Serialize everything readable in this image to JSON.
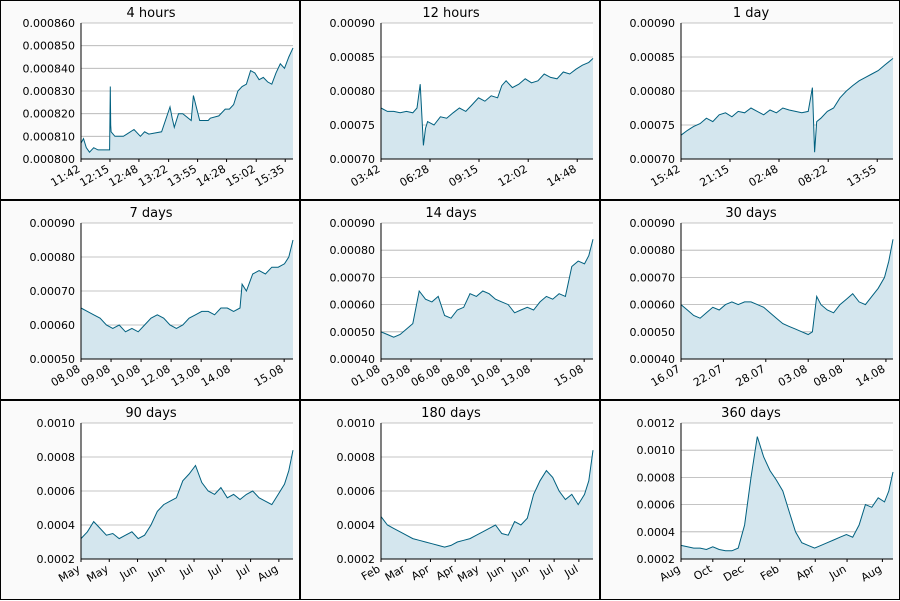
{
  "line_color": "#00607f",
  "fill_color": "#d4e6ee",
  "grid_color": "#b0b0b0",
  "chart_data": [
    {
      "type": "area",
      "title": "4 hours",
      "ylim": [
        0.0008,
        0.00086
      ],
      "y_ticks": [
        "0.000800",
        "0.000810",
        "0.000820",
        "0.000830",
        "0.000840",
        "0.000850",
        "0.000860"
      ],
      "x_labels": [
        "11:42",
        "12:15",
        "12:48",
        "13:22",
        "13:55",
        "14:28",
        "15:02",
        "15:35"
      ],
      "x_label_pos": [
        0,
        0.1366,
        0.2732,
        0.4133,
        0.55,
        0.6866,
        0.8266,
        0.9633
      ],
      "x": [
        0,
        0.012,
        0.025,
        0.04,
        0.06,
        0.08,
        0.1,
        0.12,
        0.135,
        0.138,
        0.14,
        0.142,
        0.16,
        0.2,
        0.25,
        0.28,
        0.3,
        0.32,
        0.38,
        0.42,
        0.43,
        0.44,
        0.46,
        0.48,
        0.52,
        0.53,
        0.56,
        0.6,
        0.61,
        0.65,
        0.68,
        0.7,
        0.72,
        0.74,
        0.76,
        0.78,
        0.8,
        0.82,
        0.84,
        0.86,
        0.88,
        0.9,
        0.92,
        0.94,
        0.96,
        0.98,
        1.0
      ],
      "y": [
        0.000807,
        0.000809,
        0.000805,
        0.000803,
        0.000805,
        0.000804,
        0.000804,
        0.000804,
        0.000804,
        0.000832,
        0.000815,
        0.000812,
        0.00081,
        0.00081,
        0.000813,
        0.00081,
        0.000812,
        0.000811,
        0.000812,
        0.000823,
        0.000818,
        0.000814,
        0.00082,
        0.00082,
        0.000817,
        0.000828,
        0.000817,
        0.000817,
        0.000818,
        0.000819,
        0.000822,
        0.000822,
        0.000824,
        0.00083,
        0.000832,
        0.000833,
        0.000839,
        0.000838,
        0.000835,
        0.000836,
        0.000834,
        0.000833,
        0.000838,
        0.000842,
        0.00084,
        0.000845,
        0.000849
      ]
    },
    {
      "type": "area",
      "title": "12 hours",
      "ylim": [
        0.0007,
        0.0009
      ],
      "y_ticks": [
        "0.00070",
        "0.00075",
        "0.00080",
        "0.00085",
        "0.00090"
      ],
      "x_labels": [
        "03:42",
        "06:28",
        "09:15",
        "12:02",
        "14:48"
      ],
      "x_label_pos": [
        0,
        0.2311,
        0.4622,
        0.6944,
        0.9256
      ],
      "x": [
        0,
        0.03,
        0.06,
        0.09,
        0.12,
        0.15,
        0.17,
        0.185,
        0.19,
        0.2,
        0.21,
        0.22,
        0.25,
        0.28,
        0.31,
        0.34,
        0.37,
        0.4,
        0.43,
        0.46,
        0.49,
        0.52,
        0.55,
        0.57,
        0.59,
        0.62,
        0.65,
        0.68,
        0.71,
        0.74,
        0.77,
        0.8,
        0.83,
        0.86,
        0.89,
        0.92,
        0.95,
        0.98,
        1.0
      ],
      "y": [
        0.000775,
        0.00077,
        0.00077,
        0.000768,
        0.00077,
        0.000768,
        0.000775,
        0.00081,
        0.00078,
        0.00072,
        0.000745,
        0.000755,
        0.00075,
        0.000762,
        0.00076,
        0.000768,
        0.000775,
        0.00077,
        0.00078,
        0.00079,
        0.000785,
        0.000793,
        0.00079,
        0.000808,
        0.000815,
        0.000805,
        0.00081,
        0.000818,
        0.000812,
        0.000815,
        0.000825,
        0.00082,
        0.000818,
        0.000828,
        0.000825,
        0.000832,
        0.000838,
        0.000842,
        0.000848
      ]
    },
    {
      "type": "area",
      "title": "1 day",
      "ylim": [
        0.0007,
        0.0009
      ],
      "y_ticks": [
        "0.00070",
        "0.00075",
        "0.00080",
        "0.00085",
        "0.00090"
      ],
      "x_labels": [
        "15:42",
        "21:15",
        "02:48",
        "08:22",
        "13:55"
      ],
      "x_label_pos": [
        0,
        0.2311,
        0.4622,
        0.6944,
        0.9256
      ],
      "x": [
        0,
        0.03,
        0.06,
        0.09,
        0.12,
        0.15,
        0.18,
        0.21,
        0.24,
        0.27,
        0.3,
        0.33,
        0.36,
        0.39,
        0.42,
        0.45,
        0.48,
        0.51,
        0.54,
        0.57,
        0.6,
        0.62,
        0.63,
        0.64,
        0.66,
        0.69,
        0.72,
        0.75,
        0.78,
        0.81,
        0.84,
        0.87,
        0.9,
        0.93,
        0.96,
        1.0
      ],
      "y": [
        0.000735,
        0.000742,
        0.000748,
        0.000752,
        0.00076,
        0.000755,
        0.000765,
        0.000768,
        0.000762,
        0.00077,
        0.000768,
        0.000775,
        0.00077,
        0.000765,
        0.000772,
        0.000768,
        0.000775,
        0.000772,
        0.00077,
        0.000768,
        0.00077,
        0.000805,
        0.00071,
        0.000755,
        0.00076,
        0.00077,
        0.000775,
        0.00079,
        0.0008,
        0.000808,
        0.000815,
        0.00082,
        0.000825,
        0.00083,
        0.000838,
        0.000848
      ]
    },
    {
      "type": "area",
      "title": "7 days",
      "ylim": [
        0.0005,
        0.0009
      ],
      "y_ticks": [
        "0.00050",
        "0.00060",
        "0.00070",
        "0.00080",
        "0.00090"
      ],
      "x_labels": [
        "08.08",
        "09.08",
        "10.08",
        "12.08",
        "13.08",
        "14.08",
        "15.08"
      ],
      "x_label_pos": [
        0,
        0.1417,
        0.2833,
        0.425,
        0.5667,
        0.7083,
        0.9583
      ],
      "x": [
        0,
        0.03,
        0.06,
        0.09,
        0.12,
        0.15,
        0.18,
        0.21,
        0.24,
        0.27,
        0.3,
        0.33,
        0.36,
        0.39,
        0.42,
        0.45,
        0.48,
        0.51,
        0.54,
        0.57,
        0.6,
        0.63,
        0.66,
        0.69,
        0.72,
        0.75,
        0.76,
        0.78,
        0.81,
        0.84,
        0.87,
        0.9,
        0.93,
        0.96,
        0.98,
        1.0
      ],
      "y": [
        0.00065,
        0.00064,
        0.00063,
        0.00062,
        0.0006,
        0.00059,
        0.0006,
        0.00058,
        0.00059,
        0.00058,
        0.0006,
        0.00062,
        0.00063,
        0.00062,
        0.0006,
        0.00059,
        0.0006,
        0.00062,
        0.00063,
        0.00064,
        0.00064,
        0.00063,
        0.00065,
        0.00065,
        0.00064,
        0.00065,
        0.00072,
        0.0007,
        0.00075,
        0.00076,
        0.00075,
        0.00077,
        0.00077,
        0.00078,
        0.0008,
        0.00085
      ]
    },
    {
      "type": "area",
      "title": "14 days",
      "ylim": [
        0.0004,
        0.0009
      ],
      "y_ticks": [
        "0.00040",
        "0.00050",
        "0.00060",
        "0.00070",
        "0.00080",
        "0.00090"
      ],
      "x_labels": [
        "01.08",
        "03.08",
        "06.08",
        "08.08",
        "10.08",
        "13.08",
        "15.08"
      ],
      "x_label_pos": [
        0,
        0.1417,
        0.2833,
        0.425,
        0.5667,
        0.7083,
        0.9583
      ],
      "x": [
        0,
        0.03,
        0.06,
        0.09,
        0.12,
        0.15,
        0.18,
        0.21,
        0.24,
        0.27,
        0.3,
        0.33,
        0.36,
        0.39,
        0.42,
        0.45,
        0.48,
        0.51,
        0.54,
        0.57,
        0.6,
        0.63,
        0.66,
        0.69,
        0.72,
        0.75,
        0.78,
        0.81,
        0.84,
        0.87,
        0.9,
        0.93,
        0.96,
        0.98,
        1.0
      ],
      "y": [
        0.0005,
        0.00049,
        0.00048,
        0.00049,
        0.00051,
        0.00053,
        0.00065,
        0.00062,
        0.00061,
        0.00063,
        0.00056,
        0.00055,
        0.00058,
        0.00059,
        0.00064,
        0.00063,
        0.00065,
        0.00064,
        0.00062,
        0.00061,
        0.0006,
        0.00057,
        0.00058,
        0.00059,
        0.00058,
        0.00061,
        0.00063,
        0.00062,
        0.00064,
        0.00063,
        0.00074,
        0.00076,
        0.00075,
        0.00078,
        0.00084
      ]
    },
    {
      "type": "area",
      "title": "30 days",
      "ylim": [
        0.0004,
        0.0009
      ],
      "y_ticks": [
        "0.00040",
        "0.00050",
        "0.00060",
        "0.00070",
        "0.00080",
        "0.00090"
      ],
      "x_labels": [
        "16.07",
        "22.07",
        "28.07",
        "03.08",
        "08.08",
        "14.08"
      ],
      "x_label_pos": [
        0,
        0.2,
        0.4,
        0.6,
        0.7667,
        0.9667
      ],
      "x": [
        0,
        0.03,
        0.06,
        0.09,
        0.12,
        0.15,
        0.18,
        0.21,
        0.24,
        0.27,
        0.3,
        0.33,
        0.36,
        0.39,
        0.42,
        0.45,
        0.48,
        0.51,
        0.54,
        0.57,
        0.6,
        0.62,
        0.64,
        0.66,
        0.69,
        0.72,
        0.75,
        0.78,
        0.81,
        0.84,
        0.87,
        0.9,
        0.93,
        0.96,
        0.98,
        1.0
      ],
      "y": [
        0.0006,
        0.00058,
        0.00056,
        0.00055,
        0.00057,
        0.00059,
        0.00058,
        0.0006,
        0.00061,
        0.0006,
        0.00061,
        0.00061,
        0.0006,
        0.00059,
        0.00057,
        0.00055,
        0.00053,
        0.00052,
        0.00051,
        0.0005,
        0.00049,
        0.0005,
        0.00063,
        0.0006,
        0.00058,
        0.00057,
        0.0006,
        0.00062,
        0.00064,
        0.00061,
        0.0006,
        0.00063,
        0.00066,
        0.0007,
        0.00076,
        0.00084
      ]
    },
    {
      "type": "area",
      "title": "90 days",
      "ylim": [
        0.0002,
        0.001
      ],
      "y_ticks": [
        "0.0002",
        "0.0004",
        "0.0006",
        "0.0008",
        "0.0010"
      ],
      "x_labels": [
        "May",
        "May",
        "Jun",
        "Jun",
        "Jul",
        "Jul",
        "Jul",
        "Aug"
      ],
      "x_label_pos": [
        0,
        0.1333,
        0.2667,
        0.4,
        0.5333,
        0.6667,
        0.8,
        0.9333
      ],
      "x": [
        0,
        0.03,
        0.06,
        0.09,
        0.12,
        0.15,
        0.18,
        0.21,
        0.24,
        0.27,
        0.3,
        0.33,
        0.36,
        0.39,
        0.42,
        0.45,
        0.48,
        0.51,
        0.54,
        0.57,
        0.6,
        0.63,
        0.66,
        0.69,
        0.72,
        0.75,
        0.78,
        0.81,
        0.84,
        0.87,
        0.9,
        0.93,
        0.96,
        0.98,
        1.0
      ],
      "y": [
        0.00032,
        0.00036,
        0.00042,
        0.00038,
        0.00034,
        0.00035,
        0.00032,
        0.00034,
        0.00036,
        0.00032,
        0.00034,
        0.0004,
        0.00048,
        0.00052,
        0.00054,
        0.00056,
        0.00066,
        0.0007,
        0.00075,
        0.00065,
        0.0006,
        0.00058,
        0.00062,
        0.00056,
        0.00058,
        0.00055,
        0.00058,
        0.0006,
        0.00056,
        0.00054,
        0.00052,
        0.00058,
        0.00064,
        0.00072,
        0.00084
      ]
    },
    {
      "type": "area",
      "title": "180 days",
      "ylim": [
        0.0002,
        0.001
      ],
      "y_ticks": [
        "0.0002",
        "0.0004",
        "0.0006",
        "0.0008",
        "0.0010"
      ],
      "x_labels": [
        "Feb",
        "Mar",
        "Apr",
        "Apr",
        "May",
        "Jun",
        "Jun",
        "Jul",
        "Jul"
      ],
      "x_label_pos": [
        0,
        0.1167,
        0.2333,
        0.35,
        0.4667,
        0.5833,
        0.7,
        0.8167,
        0.9333
      ],
      "x": [
        0,
        0.03,
        0.06,
        0.09,
        0.12,
        0.15,
        0.18,
        0.21,
        0.24,
        0.27,
        0.3,
        0.33,
        0.36,
        0.39,
        0.42,
        0.45,
        0.48,
        0.51,
        0.54,
        0.57,
        0.6,
        0.63,
        0.66,
        0.69,
        0.72,
        0.75,
        0.78,
        0.81,
        0.84,
        0.87,
        0.9,
        0.93,
        0.96,
        0.98,
        1.0
      ],
      "y": [
        0.00045,
        0.0004,
        0.00038,
        0.00036,
        0.00034,
        0.00032,
        0.00031,
        0.0003,
        0.00029,
        0.00028,
        0.00027,
        0.00028,
        0.0003,
        0.00031,
        0.00032,
        0.00034,
        0.00036,
        0.00038,
        0.0004,
        0.00035,
        0.00034,
        0.00042,
        0.0004,
        0.00044,
        0.00058,
        0.00066,
        0.00072,
        0.00068,
        0.0006,
        0.00055,
        0.00058,
        0.00052,
        0.00058,
        0.00066,
        0.00084
      ]
    },
    {
      "type": "area",
      "title": "360 days",
      "ylim": [
        0.0002,
        0.0012
      ],
      "y_ticks": [
        "0.0002",
        "0.0004",
        "0.0006",
        "0.0008",
        "0.0010",
        "0.0012"
      ],
      "x_labels": [
        "Aug",
        "Oct",
        "Dec",
        "Feb",
        "Apr",
        "Jun",
        "Aug"
      ],
      "x_label_pos": [
        0,
        0.15,
        0.3,
        0.4667,
        0.6333,
        0.7833,
        0.95
      ],
      "x": [
        0,
        0.03,
        0.06,
        0.09,
        0.12,
        0.15,
        0.18,
        0.21,
        0.24,
        0.27,
        0.3,
        0.33,
        0.36,
        0.39,
        0.42,
        0.45,
        0.48,
        0.51,
        0.54,
        0.57,
        0.6,
        0.63,
        0.66,
        0.69,
        0.72,
        0.75,
        0.78,
        0.81,
        0.84,
        0.87,
        0.9,
        0.93,
        0.96,
        0.98,
        1.0
      ],
      "y": [
        0.0003,
        0.00029,
        0.00028,
        0.00028,
        0.00027,
        0.00029,
        0.00027,
        0.00026,
        0.00026,
        0.00028,
        0.00045,
        0.0008,
        0.0011,
        0.00095,
        0.00085,
        0.00078,
        0.0007,
        0.00055,
        0.0004,
        0.00032,
        0.0003,
        0.00028,
        0.0003,
        0.00032,
        0.00034,
        0.00036,
        0.00038,
        0.00036,
        0.00045,
        0.0006,
        0.00058,
        0.00065,
        0.00062,
        0.0007,
        0.00084
      ]
    }
  ]
}
